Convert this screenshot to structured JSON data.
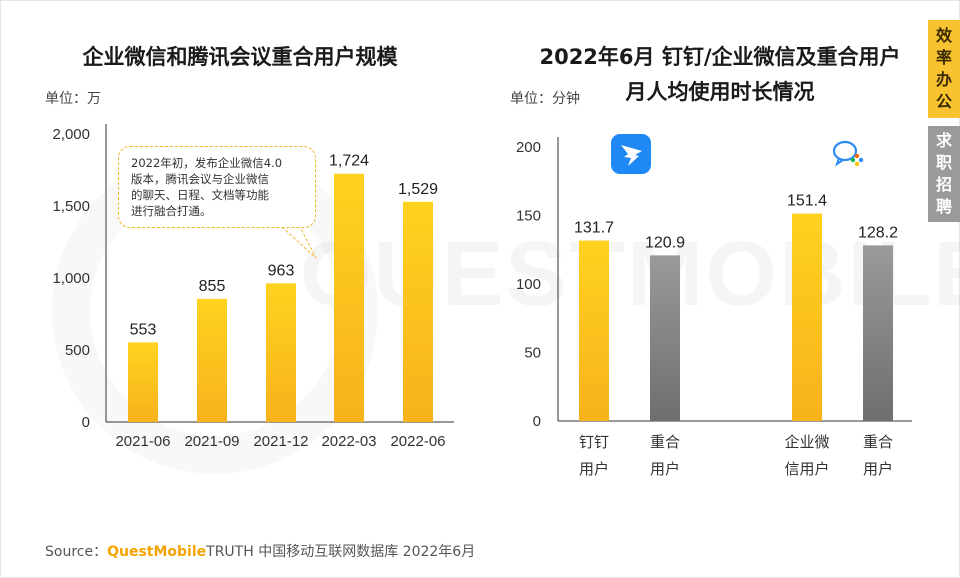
{
  "side_tags": [
    {
      "chars": [
        "效",
        "率",
        "办",
        "公"
      ]
    },
    {
      "chars": [
        "求",
        "职",
        "招",
        "聘"
      ]
    }
  ],
  "watermark": "QUESTMOBILE",
  "callout": {
    "lines": [
      "2022年初，发布企业微信4.0",
      "版本，腾讯会议与企业微信",
      "的聊天、日程、文档等功能",
      "进行融合打通。"
    ]
  },
  "source": {
    "prefix": "Source：",
    "brand": "QuestMobile",
    "suffix": "TRUTH 中国移动互联网数据库 2022年6月"
  },
  "icons": {
    "left": "dingtalk-icon",
    "right": "wecom-icon"
  },
  "colors": {
    "bar_yellow_top": "#FFD21F",
    "bar_yellow_bottom": "#F7B21C",
    "bar_gray_top": "#9A9A9A",
    "bar_gray_bottom": "#6E6E6E",
    "dingtalk_blue": "#1E88F5"
  },
  "chart_data": [
    {
      "type": "bar",
      "title": "企业微信和腾讯会议重合用户规模",
      "unit_label": "单位：万",
      "categories": [
        "2021-06",
        "2021-09",
        "2021-12",
        "2022-03",
        "2022-06"
      ],
      "values": [
        553,
        855,
        963,
        1724,
        1529
      ],
      "value_labels": [
        "553",
        "855",
        "963",
        "1,724",
        "1,529"
      ],
      "ylim": [
        0,
        2000
      ],
      "yticks": [
        0,
        500,
        1000,
        1500,
        2000
      ],
      "ytick_labels": [
        "0",
        "500",
        "1,000",
        "1,500",
        "2,000"
      ],
      "xlabel": "",
      "ylabel": ""
    },
    {
      "type": "bar",
      "title_lines": [
        "2022年6月 钉钉/企业微信及重合用户",
        "月人均使用时长情况"
      ],
      "unit_label": "单位：分钟",
      "categories": [
        [
          "钉钉",
          "用户"
        ],
        [
          "重合",
          "用户"
        ],
        [
          "企业微",
          "信用户"
        ],
        [
          "重合",
          "用户"
        ]
      ],
      "values": [
        131.7,
        120.9,
        151.4,
        128.2
      ],
      "value_labels": [
        "131.7",
        "120.9",
        "151.4",
        "128.2"
      ],
      "series_colors": [
        "yellow",
        "gray",
        "yellow",
        "gray"
      ],
      "ylim": [
        0,
        200
      ],
      "yticks": [
        0,
        50,
        100,
        150,
        200
      ],
      "ytick_labels": [
        "0",
        "50",
        "100",
        "150",
        "200"
      ],
      "xlabel": "",
      "ylabel": ""
    }
  ]
}
